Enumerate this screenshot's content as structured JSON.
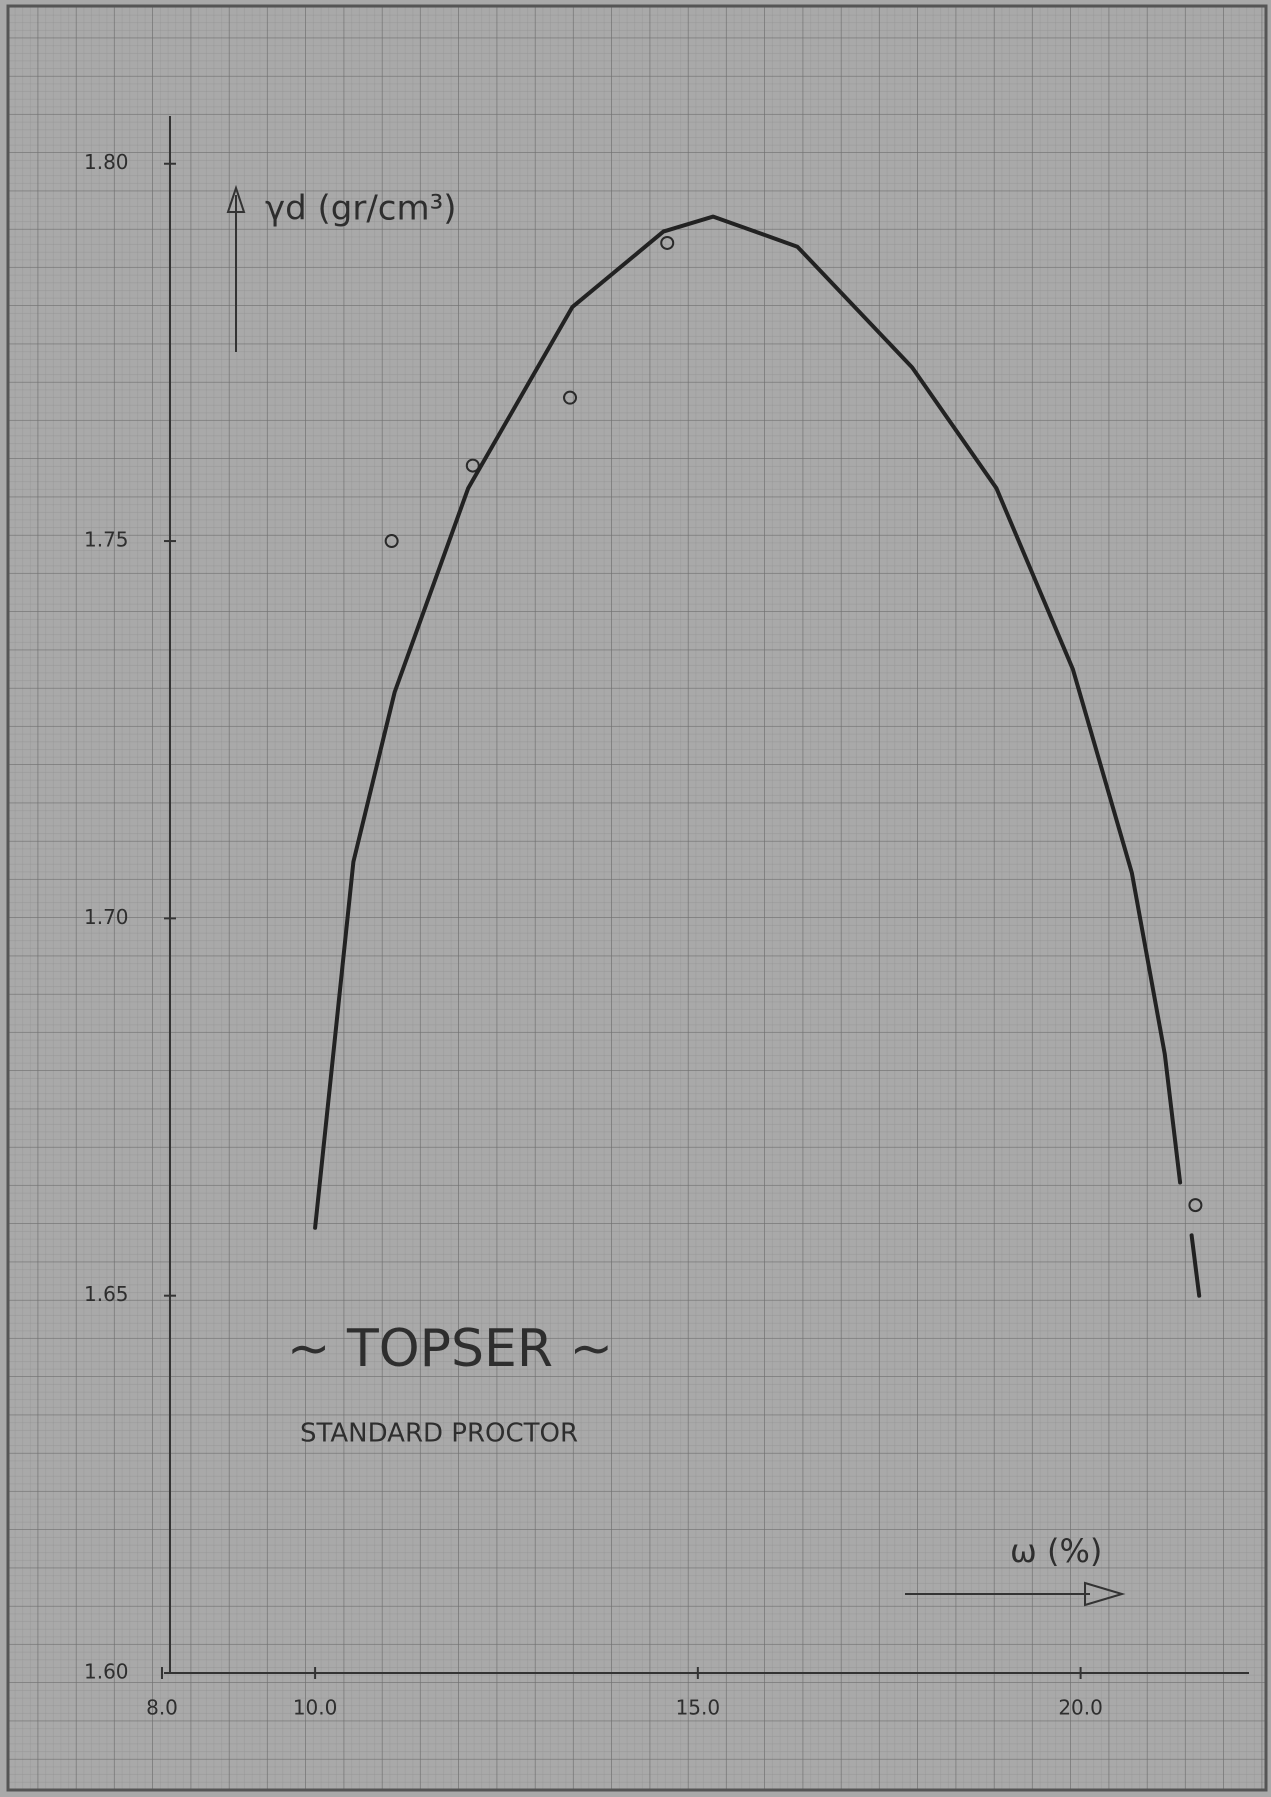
{
  "chart_data": {
    "type": "scatter",
    "title": "~ TOPSER ~",
    "subtitle": "STANDARD PROCTOR",
    "y_label": "γd (gr/cm³)",
    "x_label": "ω (%)",
    "xlim": [
      8,
      22.2
    ],
    "ylim": [
      1.6,
      1.805
    ],
    "xticks": [
      {
        "value": 8,
        "label": "8.0"
      },
      {
        "value": 10,
        "label": "10.0"
      },
      {
        "value": 15,
        "label": "15.0"
      },
      {
        "value": 20,
        "label": "20.0"
      }
    ],
    "yticks": [
      {
        "value": 1.8,
        "label": "1.80"
      },
      1.75,
      {
        "value": 1.7,
        "label": "1.70"
      },
      1.65,
      {
        "value": 1.6,
        "label": "1.60"
      }
    ],
    "series": [
      {
        "type": "scatter",
        "color": "#2a2a2a",
        "x": [
          11.0,
          12.06,
          13.33,
          14.6,
          21.5
        ],
        "values": [
          1.75,
          1.76,
          1.769,
          1.7895,
          1.662
        ]
      },
      {
        "type": "line",
        "color": "#222222",
        "x": [
          10.0,
          10.5,
          11.04,
          12.0,
          13.36,
          14.55,
          15.2,
          16.3,
          17.8,
          18.9,
          19.9,
          20.67,
          21.1,
          21.3,
          null,
          21.45,
          21.55
        ],
        "values": [
          1.659,
          1.7075,
          1.73,
          1.757,
          1.781,
          1.791,
          1.793,
          1.789,
          1.773,
          1.757,
          1.733,
          1.706,
          1.682,
          1.665,
          null,
          1.658,
          1.65
        ]
      }
    ]
  }
}
